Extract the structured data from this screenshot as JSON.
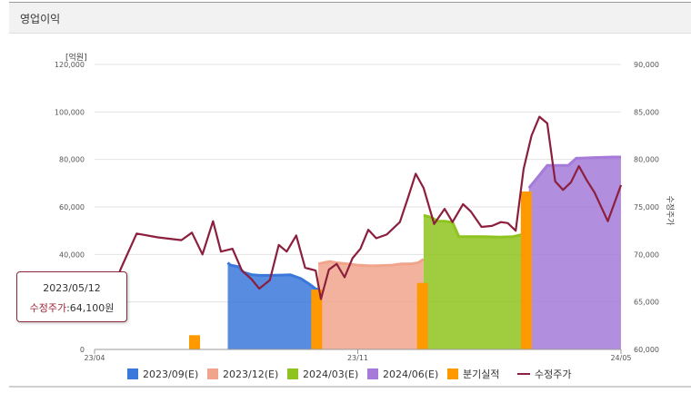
{
  "panel": {
    "title": "영업이익"
  },
  "chart_data": {
    "type": "combo",
    "left_axis": {
      "unit_label": "[억원]",
      "range": [
        0,
        120000
      ],
      "ticks": [
        "0",
        "20,000",
        "40,000",
        "60,000",
        "80,000",
        "100,000",
        "120,000"
      ]
    },
    "right_axis": {
      "label": "수정주가",
      "range": [
        60000,
        90000
      ],
      "ticks": [
        "60,000",
        "65,000",
        "70,000",
        "75,000",
        "80,000",
        "85,000",
        "90,000"
      ]
    },
    "x_axis": {
      "range_months": [
        "2023/04",
        "2024/05"
      ],
      "ticks": [
        "23/04",
        "23/11",
        "24/05"
      ]
    },
    "grid": true,
    "legend_position": "bottom",
    "series": [
      {
        "name": "2023/09(E)",
        "kind": "area",
        "color": "#3a78dc",
        "points": [
          [
            0.253,
            36500
          ],
          [
            0.258,
            35500
          ],
          [
            0.265,
            35200
          ],
          [
            0.273,
            34800
          ],
          [
            0.283,
            32500
          ],
          [
            0.298,
            31500
          ],
          [
            0.313,
            31200
          ],
          [
            0.333,
            31200
          ],
          [
            0.355,
            31300
          ],
          [
            0.372,
            31400
          ],
          [
            0.392,
            29800
          ],
          [
            0.408,
            27500
          ],
          [
            0.42,
            25500
          ],
          [
            0.425,
            25300
          ]
        ]
      },
      {
        "name": "2023/12(E)",
        "kind": "area",
        "color": "#f0a48c",
        "points": [
          [
            0.425,
            36000
          ],
          [
            0.435,
            36500
          ],
          [
            0.447,
            37000
          ],
          [
            0.46,
            36500
          ],
          [
            0.48,
            36000
          ],
          [
            0.5,
            35500
          ],
          [
            0.525,
            35200
          ],
          [
            0.545,
            35300
          ],
          [
            0.565,
            35500
          ],
          [
            0.583,
            36000
          ],
          [
            0.6,
            36000
          ],
          [
            0.615,
            36500
          ],
          [
            0.625,
            38000
          ]
        ]
      },
      {
        "name": "2024/03(E)",
        "kind": "area",
        "color": "#8fc31f",
        "points": [
          [
            0.625,
            56500
          ],
          [
            0.64,
            55500
          ],
          [
            0.652,
            54000
          ],
          [
            0.665,
            54000
          ],
          [
            0.68,
            53500
          ],
          [
            0.692,
            47500
          ],
          [
            0.71,
            47500
          ],
          [
            0.74,
            47500
          ],
          [
            0.77,
            47300
          ],
          [
            0.795,
            47500
          ],
          [
            0.815,
            48500
          ],
          [
            0.825,
            50000
          ]
        ]
      },
      {
        "name": "2024/06(E)",
        "kind": "area",
        "color": "#a57ad9",
        "points": [
          [
            0.825,
            68000
          ],
          [
            0.84,
            72000
          ],
          [
            0.86,
            77500
          ],
          [
            0.88,
            77500
          ],
          [
            0.9,
            77500
          ],
          [
            0.915,
            80500
          ],
          [
            0.95,
            80800
          ],
          [
            0.985,
            81000
          ],
          [
            1.0,
            81000
          ]
        ]
      },
      {
        "name": "분기실적",
        "kind": "bar",
        "color": "#ff9900",
        "points": [
          [
            0.19,
            6000
          ],
          [
            0.422,
            25200
          ],
          [
            0.623,
            28000
          ],
          [
            0.82,
            66500
          ]
        ]
      },
      {
        "name": "수정주가",
        "kind": "line",
        "color": "#8b1f3d",
        "points": [
          [
            0.0,
            65800
          ],
          [
            0.02,
            64100
          ],
          [
            0.05,
            68500
          ],
          [
            0.08,
            72200
          ],
          [
            0.12,
            71800
          ],
          [
            0.165,
            71500
          ],
          [
            0.185,
            72300
          ],
          [
            0.205,
            70000
          ],
          [
            0.225,
            73500
          ],
          [
            0.24,
            70300
          ],
          [
            0.262,
            70600
          ],
          [
            0.28,
            68300
          ],
          [
            0.298,
            67400
          ],
          [
            0.313,
            66400
          ],
          [
            0.333,
            67300
          ],
          [
            0.35,
            71000
          ],
          [
            0.365,
            70300
          ],
          [
            0.383,
            72000
          ],
          [
            0.4,
            68600
          ],
          [
            0.42,
            68300
          ],
          [
            0.43,
            65300
          ],
          [
            0.445,
            68400
          ],
          [
            0.46,
            69000
          ],
          [
            0.475,
            67600
          ],
          [
            0.49,
            69600
          ],
          [
            0.505,
            70600
          ],
          [
            0.52,
            72600
          ],
          [
            0.535,
            71700
          ],
          [
            0.555,
            72100
          ],
          [
            0.58,
            73400
          ],
          [
            0.595,
            75900
          ],
          [
            0.61,
            78500
          ],
          [
            0.625,
            77000
          ],
          [
            0.645,
            73200
          ],
          [
            0.665,
            74800
          ],
          [
            0.68,
            73400
          ],
          [
            0.7,
            75300
          ],
          [
            0.715,
            74500
          ],
          [
            0.735,
            72900
          ],
          [
            0.755,
            73000
          ],
          [
            0.772,
            73400
          ],
          [
            0.785,
            73300
          ],
          [
            0.8,
            72500
          ],
          [
            0.815,
            79000
          ],
          [
            0.83,
            82500
          ],
          [
            0.845,
            84500
          ],
          [
            0.86,
            83800
          ],
          [
            0.875,
            77700
          ],
          [
            0.89,
            76800
          ],
          [
            0.905,
            77600
          ],
          [
            0.92,
            79300
          ],
          [
            0.935,
            77800
          ],
          [
            0.95,
            76500
          ],
          [
            0.975,
            73500
          ],
          [
            1.0,
            77300
          ]
        ]
      }
    ]
  },
  "tooltip": {
    "date": "2023/05/12",
    "label": "수정주가",
    "value": ":64,100원"
  },
  "legend": [
    {
      "name": "2023/09(E)",
      "color": "#3a78dc",
      "marker": "square"
    },
    {
      "name": "2023/12(E)",
      "color": "#f0a48c",
      "marker": "square"
    },
    {
      "name": "2024/03(E)",
      "color": "#8fc31f",
      "marker": "square"
    },
    {
      "name": "2024/06(E)",
      "color": "#a57ad9",
      "marker": "square"
    },
    {
      "name": "분기실적",
      "color": "#ff9900",
      "marker": "square"
    },
    {
      "name": "수정주가",
      "color": "#8b1f3d",
      "marker": "line"
    }
  ]
}
